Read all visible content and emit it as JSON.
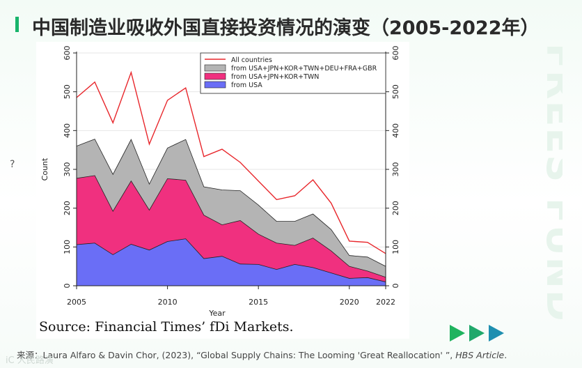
{
  "page": {
    "title": "中国制造业吸收外国直接投资情况的演变（2005-2022年）",
    "watermark": "FREES FUND",
    "question_mark": "?",
    "chart_source": "Source: Financial Times’ fDi Markets.",
    "footer_prefix": "来源：",
    "footer_citation": "Laura Alfaro & Davin Chor, (2023), “Global Supply Chains: The Looming 'Great Reallocation' ”,",
    "footer_journal": "HBS Article",
    "footer_end": ".",
    "footer_logo": "iC 人民路演",
    "colors": {
      "accent": "#18b46b",
      "arrow1": "#1fb35e",
      "arrow2": "#21a86b",
      "arrow3": "#1f8fb0"
    }
  },
  "chart_data": {
    "type": "area",
    "xlabel": "Year",
    "ylabel": "Count",
    "xlim": [
      2005,
      2022
    ],
    "ylim": [
      0,
      600
    ],
    "x_ticks": [
      2005,
      2010,
      2015,
      2020,
      2022
    ],
    "y_ticks": [
      0,
      100,
      200,
      300,
      400,
      500,
      600
    ],
    "grid": true,
    "legend_position": "top-right",
    "x": [
      2005,
      2006,
      2007,
      2008,
      2009,
      2010,
      2011,
      2012,
      2013,
      2014,
      2015,
      2016,
      2017,
      2018,
      2019,
      2020,
      2021,
      2022
    ],
    "series": [
      {
        "name": "All countries",
        "kind": "line",
        "color": "#e8262b",
        "values": [
          485,
          525,
          420,
          550,
          365,
          478,
          510,
          333,
          352,
          318,
          270,
          222,
          232,
          273,
          213,
          115,
          112,
          83
        ]
      },
      {
        "name": "from USA+JPN+KOR+TWN+DEU+FRA+GBR",
        "kind": "area",
        "color": "#b4b4b4",
        "values": [
          360,
          378,
          287,
          377,
          262,
          355,
          377,
          255,
          247,
          245,
          208,
          166,
          166,
          185,
          145,
          78,
          74,
          50
        ]
      },
      {
        "name": "from USA+JPN+KOR+TWN",
        "kind": "area",
        "color": "#f0307f",
        "values": [
          277,
          284,
          192,
          270,
          195,
          276,
          272,
          182,
          157,
          168,
          133,
          110,
          104,
          123,
          90,
          50,
          38,
          22
        ]
      },
      {
        "name": "from USA",
        "kind": "area",
        "color": "#6a6ef6",
        "values": [
          106,
          110,
          80,
          107,
          92,
          114,
          121,
          70,
          76,
          56,
          55,
          42,
          55,
          47,
          33,
          19,
          21,
          10
        ]
      }
    ]
  }
}
